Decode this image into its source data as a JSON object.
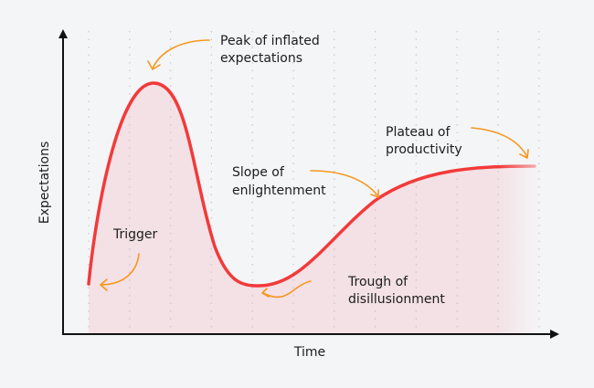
{
  "axes": {
    "x_label": "Time",
    "y_label": "Expectations"
  },
  "phases": [
    {
      "id": "trigger",
      "lines": [
        "Trigger"
      ]
    },
    {
      "id": "peak",
      "lines": [
        "Peak of inflated",
        "expectations"
      ]
    },
    {
      "id": "trough",
      "lines": [
        "Trough of",
        "disillusionment"
      ]
    },
    {
      "id": "slope",
      "lines": [
        "Slope of",
        "enlightenment"
      ]
    },
    {
      "id": "plateau",
      "lines": [
        "Plateau of",
        "productivity"
      ]
    }
  ],
  "colors": {
    "background": "#f4f5f7",
    "curve": "#f23a3a",
    "area_fill": "#f3e1e5",
    "arrow": "#f7971e",
    "axis": "#111111"
  }
}
